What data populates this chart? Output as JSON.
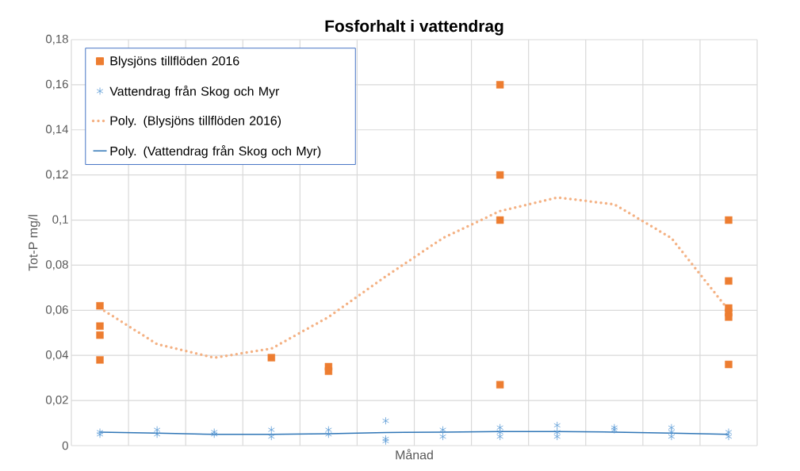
{
  "chart_data": {
    "type": "scatter",
    "title": "Fosforhalt i vattendrag",
    "xlabel": "Månad",
    "ylabel": "Tot-P mg/l",
    "categories": [
      null,
      null,
      null,
      null,
      null,
      null,
      null,
      null,
      null,
      null,
      null,
      null
    ],
    "ylim": [
      0,
      0.18
    ],
    "yticks": [
      {
        "value": 0,
        "label": "0"
      },
      {
        "value": 0.02,
        "label": "0,02"
      },
      {
        "value": 0.04,
        "label": "0,04"
      },
      {
        "value": 0.06,
        "label": "0,06"
      },
      {
        "value": 0.08,
        "label": "0,08"
      },
      {
        "value": 0.1,
        "label": "0,1"
      },
      {
        "value": 0.12,
        "label": "0,12"
      },
      {
        "value": 0.14,
        "label": "0,14"
      },
      {
        "value": 0.16,
        "label": "0,16"
      },
      {
        "value": 0.18,
        "label": "0,18"
      }
    ],
    "grid": true,
    "legend": "top left",
    "series": [
      {
        "name": "Blysjöns tillflöden 2016",
        "marker": "square",
        "color": "#ed7d31",
        "values": [
          0.062,
          null,
          null,
          0.039,
          0.035,
          null,
          null,
          0.16,
          null,
          null,
          null,
          0.1
        ]
      },
      {
        "marker": "square",
        "color": "#ed7d31",
        "values": [
          0.053,
          null,
          null,
          null,
          0.033,
          null,
          null,
          0.12,
          null,
          null,
          null,
          0.073
        ]
      },
      {
        "marker": "square",
        "color": "#ed7d31",
        "values": [
          0.049,
          null,
          null,
          null,
          null,
          null,
          null,
          0.1,
          null,
          null,
          null,
          0.061
        ]
      },
      {
        "marker": "square",
        "color": "#ed7d31",
        "values": [
          0.038,
          null,
          null,
          null,
          null,
          null,
          null,
          0.027,
          null,
          null,
          null,
          0.059
        ]
      },
      {
        "marker": "square",
        "color": "#ed7d31",
        "values": [
          null,
          null,
          null,
          null,
          null,
          null,
          null,
          null,
          null,
          null,
          null,
          0.057
        ]
      },
      {
        "marker": "square",
        "color": "#ed7d31",
        "values": [
          null,
          null,
          null,
          null,
          null,
          null,
          null,
          null,
          null,
          null,
          null,
          0.036
        ]
      },
      {
        "name": "Vattendrag från Skog och Myr",
        "marker": "cross",
        "color": "#5b9bd5",
        "values": [
          0.006,
          0.007,
          0.006,
          0.007,
          0.007,
          0.011,
          0.007,
          0.008,
          0.009,
          0.008,
          0.008,
          0.006
        ]
      },
      {
        "marker": "cross",
        "color": "#5b9bd5",
        "values": [
          0.005,
          0.005,
          0.005,
          0.004,
          0.005,
          0.003,
          0.004,
          0.006,
          0.006,
          0.007,
          0.006,
          0.004
        ]
      },
      {
        "marker": "cross",
        "color": "#5b9bd5",
        "values": [
          null,
          null,
          null,
          null,
          null,
          0.002,
          null,
          0.004,
          0.004,
          null,
          0.004,
          null
        ]
      },
      {
        "name": "Poly. (Blysjöns tillflöden 2016)",
        "type": "line",
        "marker": "none",
        "line_style": "dotted",
        "color": "#f4b183",
        "values": [
          0.061,
          0.045,
          0.039,
          0.043,
          0.057,
          0.075,
          0.092,
          0.104,
          0.11,
          0.107,
          0.092,
          0.06
        ]
      },
      {
        "name": "Poly. (Vattendrag från Skog och Myr)",
        "type": "line",
        "marker": "none",
        "line_style": "solid",
        "color": "#2e75b6",
        "values": [
          0.006,
          0.0055,
          0.005,
          0.005,
          0.0053,
          0.0058,
          0.006,
          0.0062,
          0.0062,
          0.006,
          0.0055,
          0.005
        ]
      }
    ]
  }
}
